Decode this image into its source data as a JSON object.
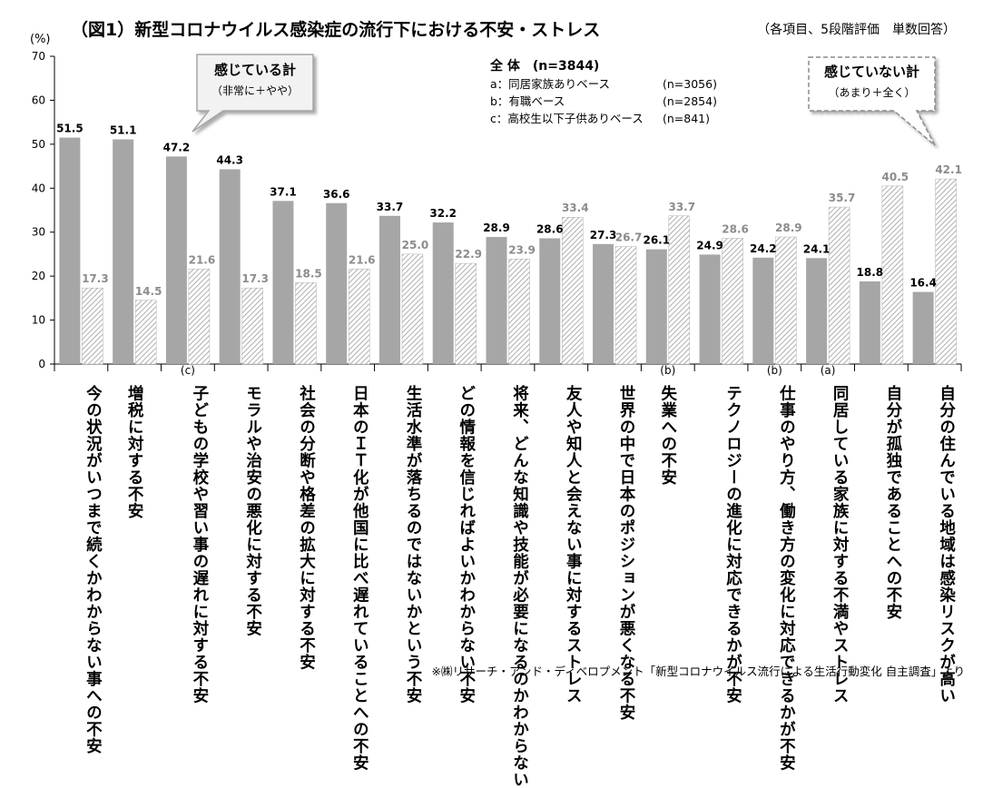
{
  "header": {
    "title": "（図1）新型コロナウイルス感染症の流行下における不安・ストレス",
    "subtitle": "（各項目、5段階評価　単数回答）"
  },
  "legend": {
    "heading": "全 体　(n=3844)",
    "items": [
      {
        "label": "a：同居家族ありベース",
        "n": "(n=3056)"
      },
      {
        "label": "b：有職ベース",
        "n": "(n=2854)"
      },
      {
        "label": "c：高校生以下子供ありベース",
        "n": "(n=841)"
      }
    ]
  },
  "callouts": {
    "left": {
      "title": "感じている計",
      "sub": "（非常に＋やや）"
    },
    "right": {
      "title": "感じていない計",
      "sub": "（あまり＋全く）"
    }
  },
  "source": "※㈱リサーチ・アンド・ディベロプメント「新型コロナウイルス流行による生活行動変化 自主調査」より",
  "chart_data": {
    "type": "bar",
    "ylabel": "(%)",
    "ylim": [
      0,
      70
    ],
    "yticks": [
      0,
      10,
      20,
      30,
      40,
      50,
      60,
      70
    ],
    "categories": [
      "今の状況がいつまで続くかわからない事への不安",
      "増税に対する不安",
      "子どもの学校や習い事の遅れに対する不安",
      "モラルや治安の悪化に対する不安",
      "社会の分断や格差の拡大に対する不安",
      "日本のＩＴ化が他国に比べ遅れていることへの不安",
      "生活水準が落ちるのではないかという不安",
      "どの情報を信じればよいかわからない不安",
      "将来、どんな知識や技能が必要になるのかわからない",
      "友人や知人と会えない事に対するストレス",
      "世界の中で日本のポジションが悪くなる不安",
      "失業への不安",
      "テクノロジーの進化に対応できるかが不安",
      "仕事のやり方、働き方の変化に対応できるかが不安",
      "同居している家族に対する不満やストレス",
      "自分が孤独であることへの不安",
      "自分の住んでいる地域は感染リスクが高い"
    ],
    "notes": [
      "",
      "",
      "(c)",
      "",
      "",
      "",
      "",
      "",
      "",
      "",
      "",
      "(b)",
      "",
      "(b)",
      "(a)",
      "",
      ""
    ],
    "series": [
      {
        "name": "感じている計",
        "values": [
          51.5,
          51.1,
          47.2,
          44.3,
          37.1,
          36.6,
          33.7,
          32.2,
          28.9,
          28.6,
          27.3,
          26.1,
          24.9,
          24.2,
          24.1,
          18.8,
          16.4
        ]
      },
      {
        "name": "感じていない計",
        "values": [
          17.3,
          14.5,
          21.6,
          17.3,
          18.5,
          21.6,
          25.0,
          22.9,
          23.9,
          33.4,
          26.7,
          33.7,
          28.6,
          28.9,
          35.7,
          40.5,
          42.1
        ]
      }
    ],
    "colors": {
      "felt": "#a6a6a6",
      "notfelt_bg": "#ffffff",
      "notfelt_hatch": "#9a9a9a",
      "label_notfelt": "#8c8c8c"
    }
  }
}
